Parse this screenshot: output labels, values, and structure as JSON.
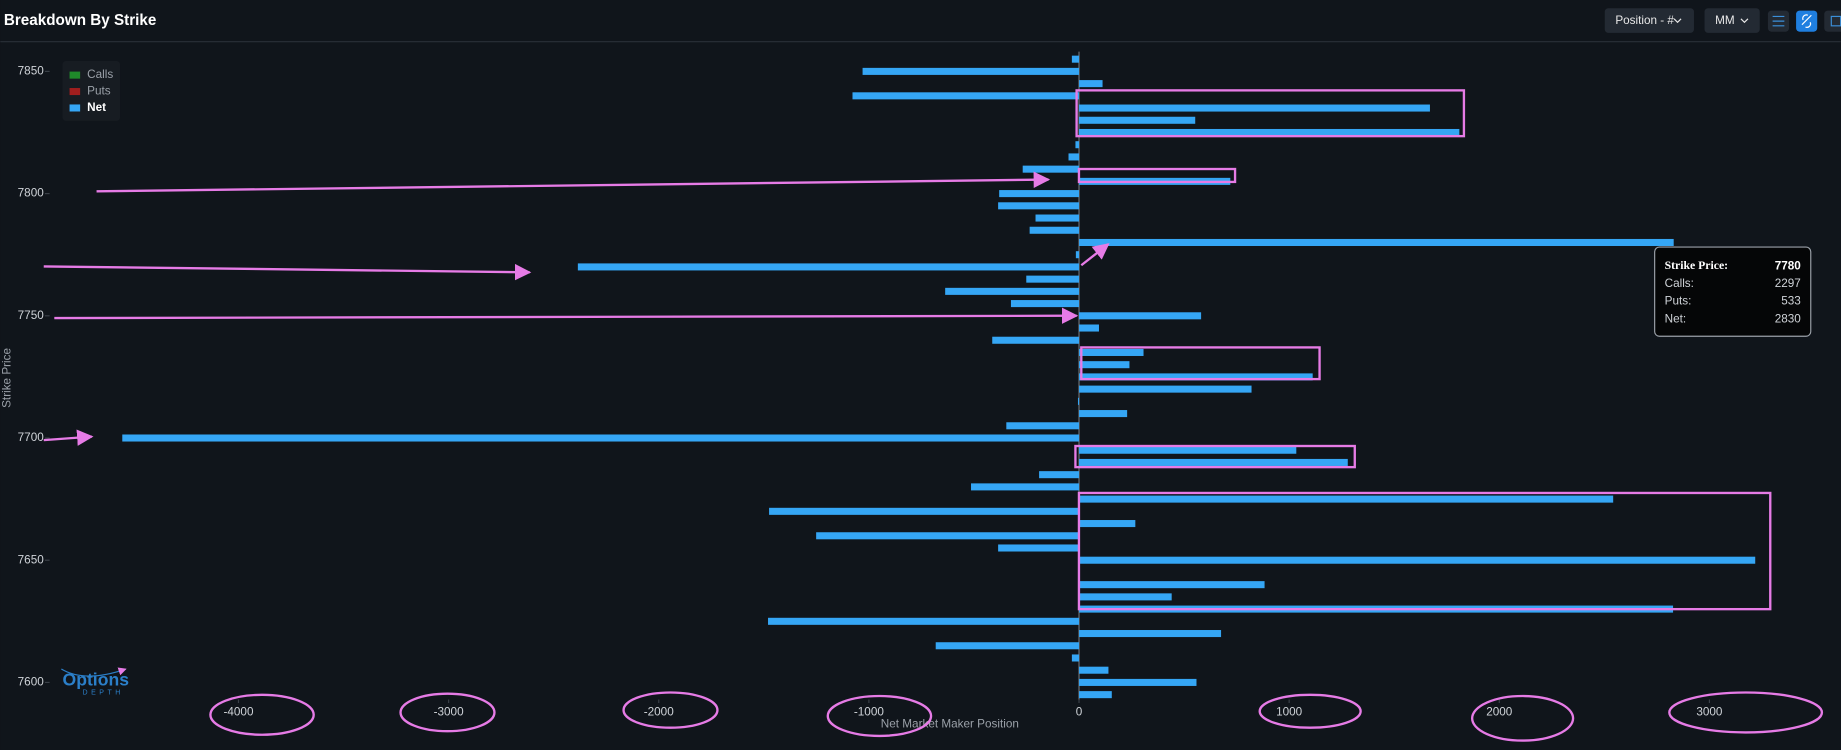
{
  "header": {
    "title": "Breakdown By Strike",
    "controls": [
      "Position - #",
      "MM"
    ]
  },
  "chart_data": {
    "type": "hbar",
    "x_label": "Net Market Maker Position",
    "y_label": "Strike Price",
    "legend": [
      {
        "name": "Calls",
        "color": "#1f8a2a"
      },
      {
        "name": "Puts",
        "color": "#a01e1e"
      },
      {
        "name": "Net",
        "color": "#35a6f5"
      }
    ],
    "strikes": [
      7595,
      7600,
      7605,
      7610,
      7615,
      7620,
      7625,
      7630,
      7635,
      7640,
      7645,
      7650,
      7655,
      7660,
      7665,
      7670,
      7675,
      7680,
      7685,
      7690,
      7695,
      7700,
      7705,
      7710,
      7715,
      7720,
      7725,
      7730,
      7735,
      7740,
      7745,
      7750,
      7755,
      7760,
      7765,
      7770,
      7775,
      7780,
      7785,
      7790,
      7795,
      7800,
      7805,
      7810,
      7815,
      7820,
      7825,
      7830,
      7835,
      7840,
      7845,
      7850,
      7855
    ],
    "values": [
      156,
      559,
      140,
      -34,
      -682,
      676,
      -1480,
      2827,
      441,
      883,
      0,
      3218,
      -385,
      -1251,
      268,
      -1475,
      2542,
      -514,
      -190,
      1279,
      1034,
      -4553,
      -346,
      229,
      -5,
      821,
      1112,
      240,
      307,
      -413,
      95,
      581,
      -324,
      -637,
      -251,
      -2385,
      -15,
      2830,
      -235,
      -207,
      -385,
      -380,
      720,
      -268,
      -50,
      -17,
      1810,
      553,
      1670,
      -1078,
      112,
      -1030,
      -34
    ],
    "color": "#35a6f5",
    "xlim": [
      -4910,
      3580
    ],
    "xticks": [
      -4000,
      -3000,
      -2000,
      -1000,
      0,
      1000,
      2000,
      3000
    ],
    "ylim": [
      7593,
      7860
    ],
    "yticks": [
      7600,
      7650,
      7700,
      7750,
      7800,
      7850
    ],
    "tooltip": {
      "title": "Strike Price:",
      "strike": 7780,
      "rows": [
        {
          "label": "Calls:",
          "value": 2297
        },
        {
          "label": "Puts:",
          "value": 533
        },
        {
          "label": "Net:",
          "value": 2830
        }
      ]
    }
  },
  "logo": {
    "name": "Options",
    "sub": "DEPTH"
  }
}
